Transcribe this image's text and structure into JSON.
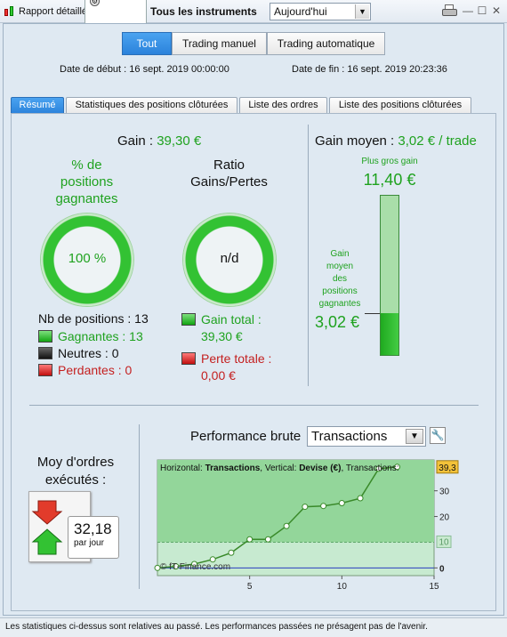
{
  "header": {
    "app_title": "Rapport détaillé",
    "instruments_label": "Tous les instruments",
    "period_value": "Aujourd'hui"
  },
  "filters": {
    "segments": [
      "Tout",
      "Trading manuel",
      "Trading automatique"
    ],
    "active_segment": "Tout"
  },
  "dates": {
    "start": "Date de début :  16 sept. 2019 00:00:00",
    "end": "Date de fin :  16 sept. 2019 20:23:36"
  },
  "tabs": [
    "Résumé",
    "Statistiques des positions clôturées",
    "Liste des ordres",
    "Liste des positions clôturées"
  ],
  "summary": {
    "gain_label": "Gain : ",
    "gain_value": "39,30 €",
    "winning_pct_title_1": "% de",
    "winning_pct_title_2": "positions",
    "winning_pct_title_3": "gagnantes",
    "winning_pct_value": "100 %",
    "winning_pct_fraction": 1.0,
    "ratio_title_1": "Ratio",
    "ratio_title_2": "Gains/Pertes",
    "ratio_value": "n/d",
    "positions_count": "Nb de positions : 13",
    "winners": "Gagnantes : 13",
    "neutral": "Neutres : 0",
    "losers": "Perdantes : 0",
    "total_gain_label": "Gain total :",
    "total_gain_value": "39,30 €",
    "total_loss_label": "Perte totale :",
    "total_loss_value": "0,00 €"
  },
  "avg_gain": {
    "label": "Gain moyen : ",
    "value": "3,02 € / trade",
    "biggest_label": "Plus gros gain",
    "biggest_value": "11,40 €",
    "avg_label_lines": [
      "Gain",
      "moyen",
      "des",
      "positions",
      "gagnantes"
    ],
    "avg_value": "3,02 €",
    "max": 11.4,
    "avg": 3.02
  },
  "orders": {
    "title_1": "Moy d'ordres",
    "title_2": "exécutés :",
    "value": "32,18",
    "unit": "par jour"
  },
  "performance": {
    "title": "Performance brute",
    "select_value": "Transactions",
    "info_prefix_1": "Horizontal: ",
    "info_h": "Transactions",
    "info_prefix_2": ", Vertical: ",
    "info_v": "Devise (€)",
    "info_prefix_3": ", Transactions:",
    "watermark": "© fT-Finance.com",
    "last_value_label": "39,3",
    "ref_label": "10"
  },
  "chart_data": {
    "type": "line",
    "x": [
      0,
      1,
      2,
      3,
      4,
      5,
      6,
      7,
      8,
      9,
      10,
      11,
      12,
      13
    ],
    "series": [
      {
        "values": [
          0,
          0.6,
          1.5,
          3.3,
          5.9,
          11.1,
          11.1,
          16.3,
          23.8,
          24.1,
          25.2,
          27.1,
          38.6,
          39.3
        ]
      }
    ],
    "x_ticks": [
      "5",
      "10",
      "15"
    ],
    "y_ticks": [
      "0",
      "10",
      "20",
      "30"
    ],
    "xlim": [
      0,
      15
    ],
    "ylim": [
      -3,
      42
    ],
    "reference_line": 10,
    "last_value": 39.3,
    "colors": {
      "line": "#3a8a2a",
      "fill": "#93d69a",
      "marker": "#ffffff"
    }
  },
  "footer": {
    "disclaimer": "Les statistiques ci-dessus sont relatives au passé. Les performances passées ne présagent pas de l'avenir."
  }
}
